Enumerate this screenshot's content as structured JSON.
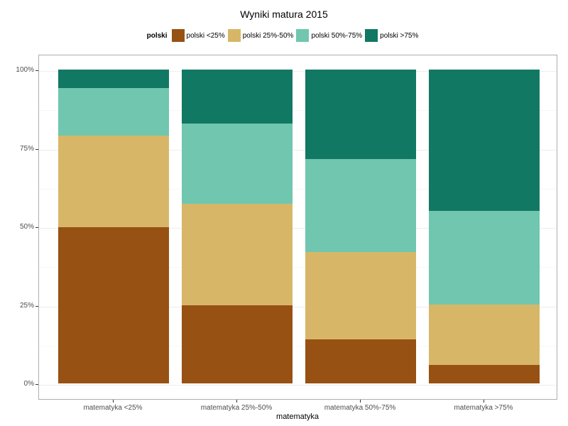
{
  "title": "Wyniki matura 2015",
  "chart_data": {
    "type": "bar",
    "stacked": true,
    "normalized_percent": true,
    "title": "Wyniki matura 2015",
    "xlabel": "matematyka",
    "ylabel": "",
    "legend_title": "polski",
    "legend_position": "top",
    "grid": true,
    "ylim": [
      0,
      100
    ],
    "y_ticks": [
      0,
      25,
      50,
      75,
      100
    ],
    "y_tick_labels": [
      "0%",
      "25%",
      "50%",
      "75%",
      "100%"
    ],
    "y_minor_ticks": [
      12.5,
      37.5,
      62.5,
      87.5
    ],
    "categories": [
      "matematyka <25%",
      "matematyka 25%-50%",
      "matematyka 50%-75%",
      "matematyka >75%"
    ],
    "series": [
      {
        "name": "polski <25%",
        "color": "#975113",
        "values": [
          49.8,
          24.9,
          14.0,
          5.9
        ]
      },
      {
        "name": "polski 25%-50%",
        "color": "#D7B767",
        "values": [
          29.2,
          32.3,
          27.9,
          19.2
        ]
      },
      {
        "name": "polski 50%-75%",
        "color": "#70C6AF",
        "values": [
          15.1,
          25.6,
          29.6,
          29.9
        ]
      },
      {
        "name": "polski >75%",
        "color": "#117863",
        "values": [
          5.9,
          17.2,
          28.5,
          45.0
        ]
      }
    ]
  },
  "colors": {
    "panel_border": "#adadad",
    "grid_major": "#ededed",
    "grid_minor": "#f7f7f7",
    "tick": "#333333",
    "tick_text": "#4d4d4d",
    "background": "#ffffff"
  }
}
